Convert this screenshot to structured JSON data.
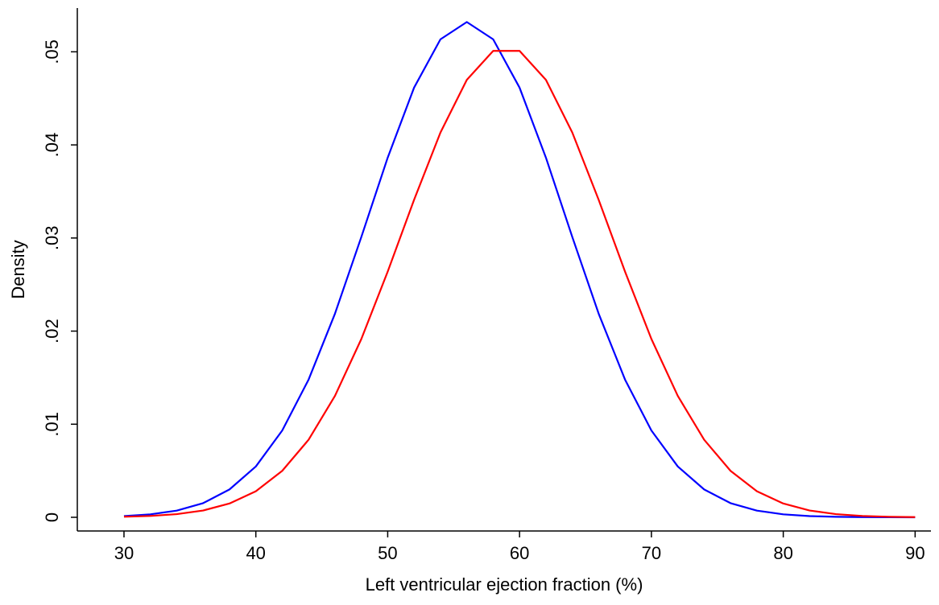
{
  "chart_data": {
    "type": "line",
    "x_label": "Left ventricular ejection fraction (%)",
    "y_label": "Density",
    "x": [
      30,
      32,
      34,
      36,
      38,
      40,
      42,
      44,
      46,
      48,
      50,
      52,
      54,
      56,
      58,
      60,
      62,
      64,
      66,
      68,
      70,
      72,
      74,
      76,
      78,
      80,
      82,
      84,
      86,
      88,
      90
    ],
    "series": [
      {
        "color": "#0000ff",
        "values": [
          0.000131,
          0.000318,
          0.00072,
          0.00152,
          0.00299,
          0.00546,
          0.00932,
          0.01479,
          0.02187,
          0.03011,
          0.03863,
          0.04615,
          0.05134,
          0.0532,
          0.05134,
          0.04615,
          0.03863,
          0.03011,
          0.02187,
          0.01479,
          0.00932,
          0.00546,
          0.00299,
          0.00152,
          0.00072,
          0.000318,
          0.000131,
          5.01e-05,
          1.78e-05,
          6e-06,
          1.8e-06
        ]
      },
      {
        "color": "#ff0000",
        "values": [
          5.98e-05,
          0.000147,
          0.000338,
          0.000729,
          0.00148,
          0.0028,
          0.00499,
          0.00833,
          0.01304,
          0.01915,
          0.02639,
          0.0341,
          0.04133,
          0.04699,
          0.0501,
          0.0501,
          0.04699,
          0.04133,
          0.0341,
          0.02639,
          0.01915,
          0.01304,
          0.00833,
          0.00499,
          0.0028,
          0.00148,
          0.000729,
          0.000338,
          0.000147,
          5.98e-05,
          2.29e-05
        ]
      }
    ],
    "xlim": [
      26.46,
      91.2
    ],
    "ylim": [
      -0.00147,
      0.0547
    ],
    "xticks": [
      30,
      40,
      50,
      60,
      70,
      80,
      90
    ],
    "yticks": [
      0,
      {
        "value": 0.01,
        "label": ".01"
      },
      {
        "value": 0.02,
        "label": ".02"
      },
      {
        "value": 0.03,
        "label": ".03"
      },
      {
        "value": 0.04,
        "label": ".04"
      },
      {
        "value": 0.05,
        "label": ".05"
      }
    ],
    "grid": false
  }
}
